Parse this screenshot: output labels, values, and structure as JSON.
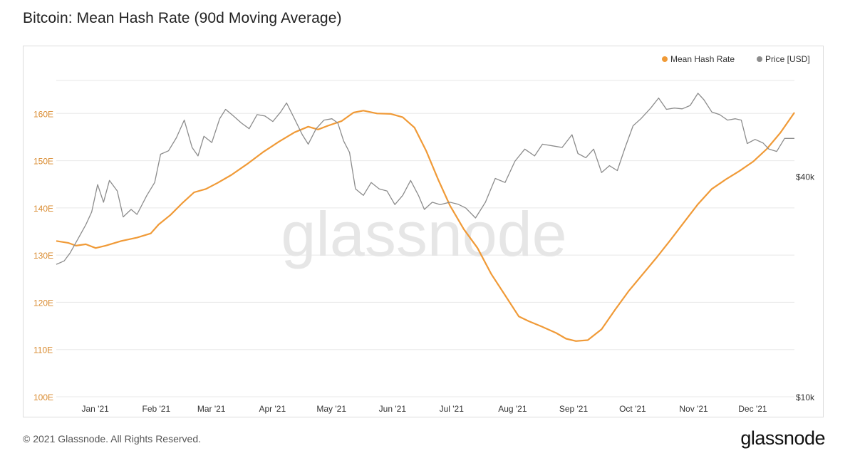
{
  "title": "Bitcoin: Mean Hash Rate (90d Moving Average)",
  "watermark": "glassnode",
  "footer": {
    "copyright": "© 2021 Glassnode. All Rights Reserved.",
    "logo": "glassnode"
  },
  "colors": {
    "hash_rate": "#f09a37",
    "price": "#8c8c8c",
    "left_axis_text": "#d98a2e",
    "grid": "#e8e8e8",
    "watermark": "#e6e6e6"
  },
  "chart_data": {
    "type": "line",
    "grid": true,
    "legend_position": "top-right",
    "legend": [
      {
        "label": "Mean Hash Rate",
        "color": "#f09a37"
      },
      {
        "label": "Price [USD]",
        "color": "#8c8c8c"
      }
    ],
    "x_axis": {
      "type": "time",
      "range": [
        "2020-12-18",
        "2021-12-28"
      ],
      "tick_labels": [
        "Jan '21",
        "Feb '21",
        "Mar '21",
        "Apr '21",
        "May '21",
        "Jun '21",
        "Jul '21",
        "Aug '21",
        "Sep '21",
        "Oct '21",
        "Nov '21",
        "Dec '21"
      ],
      "tick_dates": [
        "2021-01-01",
        "2021-02-01",
        "2021-03-01",
        "2021-04-01",
        "2021-05-01",
        "2021-06-01",
        "2021-07-01",
        "2021-08-01",
        "2021-09-01",
        "2021-10-01",
        "2021-11-01",
        "2021-12-01"
      ]
    },
    "y_left": {
      "label": "",
      "range": [
        100,
        170
      ],
      "tick_values": [
        100,
        110,
        120,
        130,
        140,
        150,
        160
      ],
      "tick_labels": [
        "100E",
        "110E",
        "120E",
        "130E",
        "140E",
        "150E",
        "160E"
      ]
    },
    "y_right": {
      "label": "",
      "scale": "log",
      "range": [
        10000,
        80000
      ],
      "tick_values": [
        10000,
        40000
      ],
      "tick_labels": [
        "$10k",
        "$40k"
      ]
    },
    "series": [
      {
        "name": "Mean Hash Rate",
        "axis": "left",
        "unit": "EH/s",
        "points": [
          [
            "2020-12-18",
            133.0
          ],
          [
            "2020-12-24",
            132.6
          ],
          [
            "2020-12-28",
            132.0
          ],
          [
            "2021-01-02",
            132.3
          ],
          [
            "2021-01-07",
            131.5
          ],
          [
            "2021-01-12",
            132.0
          ],
          [
            "2021-01-20",
            133.0
          ],
          [
            "2021-01-28",
            133.7
          ],
          [
            "2021-02-04",
            134.6
          ],
          [
            "2021-02-08",
            136.5
          ],
          [
            "2021-02-14",
            138.5
          ],
          [
            "2021-02-20",
            141.0
          ],
          [
            "2021-02-26",
            143.3
          ],
          [
            "2021-03-04",
            144.0
          ],
          [
            "2021-03-10",
            145.3
          ],
          [
            "2021-03-17",
            147.0
          ],
          [
            "2021-03-25",
            149.3
          ],
          [
            "2021-04-02",
            151.8
          ],
          [
            "2021-04-10",
            154.0
          ],
          [
            "2021-04-18",
            156.0
          ],
          [
            "2021-04-25",
            157.2
          ],
          [
            "2021-04-30",
            156.6
          ],
          [
            "2021-05-05",
            157.4
          ],
          [
            "2021-05-12",
            158.4
          ],
          [
            "2021-05-18",
            160.2
          ],
          [
            "2021-05-23",
            160.6
          ],
          [
            "2021-05-30",
            160.0
          ],
          [
            "2021-06-06",
            159.9
          ],
          [
            "2021-06-12",
            159.2
          ],
          [
            "2021-06-18",
            157.0
          ],
          [
            "2021-06-24",
            152.0
          ],
          [
            "2021-06-30",
            146.0
          ],
          [
            "2021-07-06",
            140.5
          ],
          [
            "2021-07-13",
            135.5
          ],
          [
            "2021-07-20",
            131.5
          ],
          [
            "2021-07-27",
            126.0
          ],
          [
            "2021-08-03",
            121.5
          ],
          [
            "2021-08-10",
            117.0
          ],
          [
            "2021-08-15",
            116.0
          ],
          [
            "2021-08-22",
            114.8
          ],
          [
            "2021-08-29",
            113.5
          ],
          [
            "2021-09-03",
            112.3
          ],
          [
            "2021-09-08",
            111.8
          ],
          [
            "2021-09-14",
            112.0
          ],
          [
            "2021-09-21",
            114.3
          ],
          [
            "2021-09-28",
            118.5
          ],
          [
            "2021-10-05",
            122.5
          ],
          [
            "2021-10-12",
            126.0
          ],
          [
            "2021-10-19",
            129.5
          ],
          [
            "2021-10-26",
            133.2
          ],
          [
            "2021-11-02",
            137.0
          ],
          [
            "2021-11-09",
            140.8
          ],
          [
            "2021-11-16",
            144.0
          ],
          [
            "2021-11-23",
            146.0
          ],
          [
            "2021-11-30",
            147.8
          ],
          [
            "2021-12-07",
            149.8
          ],
          [
            "2021-12-14",
            152.5
          ],
          [
            "2021-12-21",
            156.0
          ],
          [
            "2021-12-28",
            160.2
          ]
        ]
      },
      {
        "name": "Price [USD]",
        "axis": "right",
        "unit": "USD",
        "points": [
          [
            "2020-12-18",
            23000
          ],
          [
            "2020-12-22",
            23500
          ],
          [
            "2020-12-25",
            24700
          ],
          [
            "2020-12-29",
            27000
          ],
          [
            "2021-01-02",
            29500
          ],
          [
            "2021-01-05",
            32000
          ],
          [
            "2021-01-08",
            38000
          ],
          [
            "2021-01-11",
            34000
          ],
          [
            "2021-01-14",
            39000
          ],
          [
            "2021-01-18",
            36500
          ],
          [
            "2021-01-21",
            31000
          ],
          [
            "2021-01-25",
            32500
          ],
          [
            "2021-01-28",
            31500
          ],
          [
            "2021-02-02",
            35500
          ],
          [
            "2021-02-06",
            38500
          ],
          [
            "2021-02-09",
            46000
          ],
          [
            "2021-02-13",
            47000
          ],
          [
            "2021-02-17",
            51000
          ],
          [
            "2021-02-21",
            57000
          ],
          [
            "2021-02-25",
            48000
          ],
          [
            "2021-02-28",
            45500
          ],
          [
            "2021-03-03",
            51500
          ],
          [
            "2021-03-07",
            49500
          ],
          [
            "2021-03-11",
            57500
          ],
          [
            "2021-03-14",
            61000
          ],
          [
            "2021-03-18",
            58500
          ],
          [
            "2021-03-22",
            56000
          ],
          [
            "2021-03-26",
            54000
          ],
          [
            "2021-03-30",
            59000
          ],
          [
            "2021-04-03",
            58500
          ],
          [
            "2021-04-07",
            56500
          ],
          [
            "2021-04-11",
            60000
          ],
          [
            "2021-04-14",
            63500
          ],
          [
            "2021-04-18",
            57500
          ],
          [
            "2021-04-22",
            52000
          ],
          [
            "2021-04-25",
            49000
          ],
          [
            "2021-04-29",
            54000
          ],
          [
            "2021-05-03",
            57000
          ],
          [
            "2021-05-07",
            57500
          ],
          [
            "2021-05-10",
            56000
          ],
          [
            "2021-05-13",
            50000
          ],
          [
            "2021-05-16",
            46500
          ],
          [
            "2021-05-19",
            37000
          ],
          [
            "2021-05-23",
            35500
          ],
          [
            "2021-05-27",
            38500
          ],
          [
            "2021-05-31",
            37000
          ],
          [
            "2021-06-04",
            36500
          ],
          [
            "2021-06-08",
            33500
          ],
          [
            "2021-06-12",
            35500
          ],
          [
            "2021-06-16",
            39000
          ],
          [
            "2021-06-20",
            35500
          ],
          [
            "2021-06-23",
            32500
          ],
          [
            "2021-06-27",
            34000
          ],
          [
            "2021-07-01",
            33500
          ],
          [
            "2021-07-06",
            34000
          ],
          [
            "2021-07-10",
            33600
          ],
          [
            "2021-07-14",
            32800
          ],
          [
            "2021-07-19",
            30800
          ],
          [
            "2021-07-24",
            34000
          ],
          [
            "2021-07-29",
            39500
          ],
          [
            "2021-08-03",
            38500
          ],
          [
            "2021-08-08",
            44000
          ],
          [
            "2021-08-13",
            47500
          ],
          [
            "2021-08-18",
            45500
          ],
          [
            "2021-08-22",
            49000
          ],
          [
            "2021-08-27",
            48500
          ],
          [
            "2021-09-01",
            48000
          ],
          [
            "2021-09-06",
            52000
          ],
          [
            "2021-09-09",
            46200
          ],
          [
            "2021-09-13",
            45000
          ],
          [
            "2021-09-17",
            47500
          ],
          [
            "2021-09-21",
            41000
          ],
          [
            "2021-09-25",
            42800
          ],
          [
            "2021-09-29",
            41500
          ],
          [
            "2021-10-03",
            48000
          ],
          [
            "2021-10-07",
            55000
          ],
          [
            "2021-10-11",
            57500
          ],
          [
            "2021-10-16",
            61500
          ],
          [
            "2021-10-20",
            65500
          ],
          [
            "2021-10-24",
            61000
          ],
          [
            "2021-10-28",
            61500
          ],
          [
            "2021-11-01",
            61200
          ],
          [
            "2021-11-05",
            62500
          ],
          [
            "2021-11-09",
            67500
          ],
          [
            "2021-11-12",
            64800
          ],
          [
            "2021-11-16",
            60000
          ],
          [
            "2021-11-20",
            59000
          ],
          [
            "2021-11-24",
            57000
          ],
          [
            "2021-11-28",
            57500
          ],
          [
            "2021-12-01",
            57000
          ],
          [
            "2021-12-04",
            49200
          ],
          [
            "2021-12-08",
            50500
          ],
          [
            "2021-12-12",
            49400
          ],
          [
            "2021-12-15",
            47500
          ],
          [
            "2021-12-19",
            46800
          ],
          [
            "2021-12-23",
            50800
          ],
          [
            "2021-12-28",
            50800
          ]
        ]
      }
    ]
  }
}
